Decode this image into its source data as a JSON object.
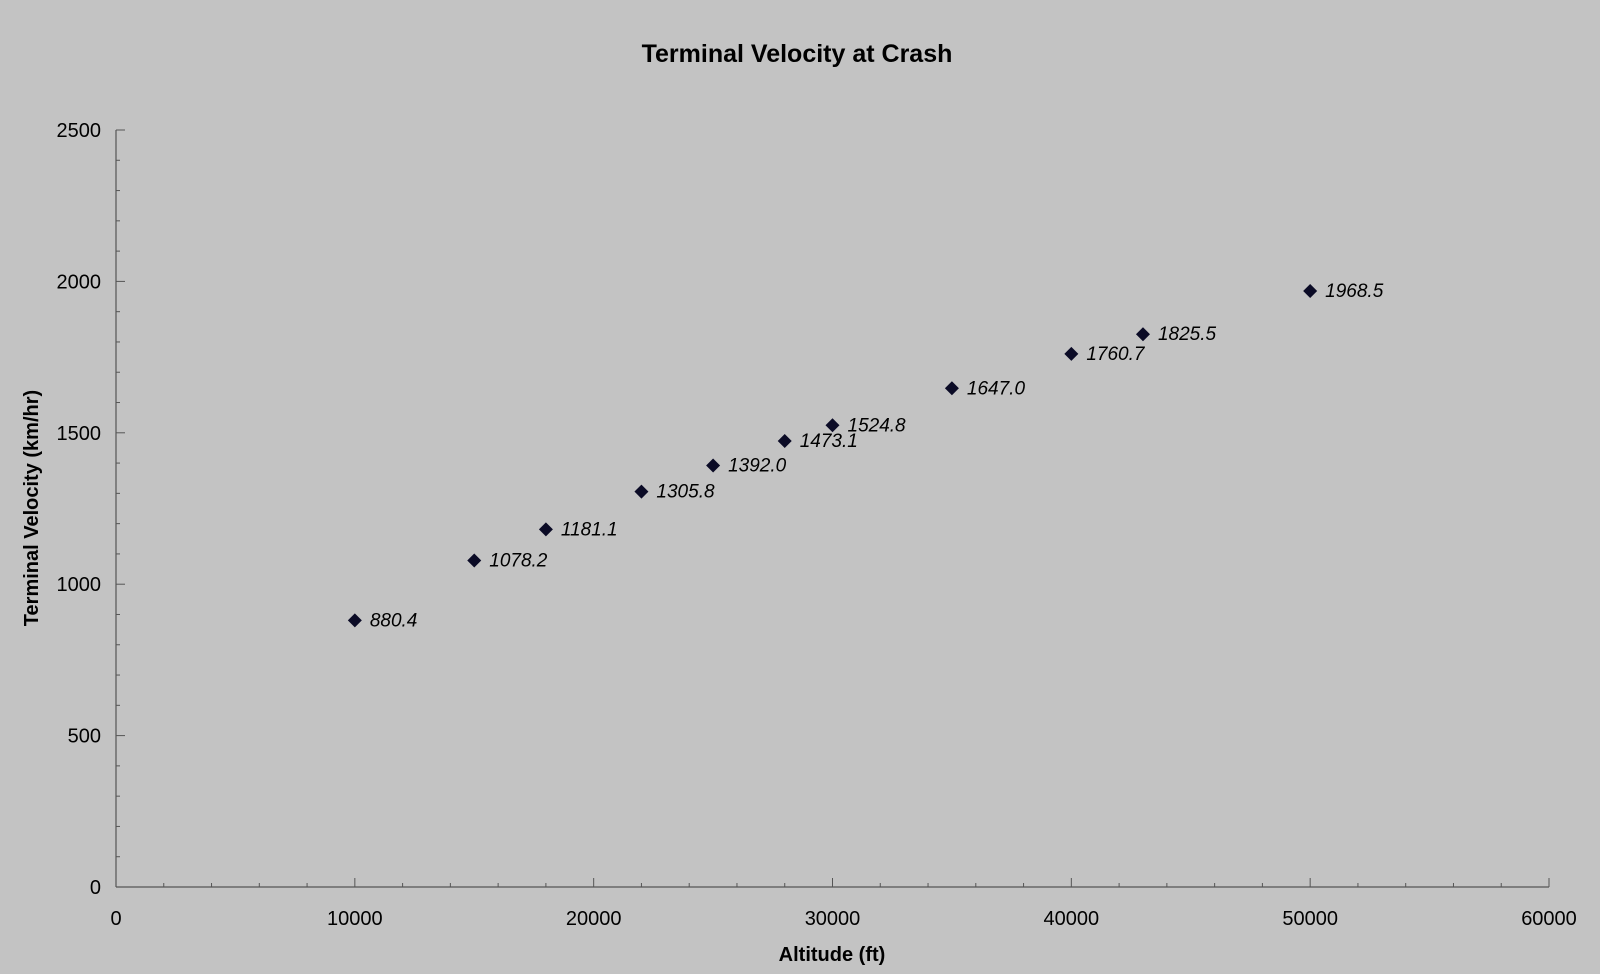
{
  "chart_data": {
    "type": "scatter",
    "title": "Terminal Velocity at Crash",
    "xlabel": "Altitude (ft)",
    "ylabel": "Terminal Velocity (km/hr)",
    "xlim": [
      0,
      60000
    ],
    "ylim": [
      0,
      2500
    ],
    "x_ticks": [
      0,
      10000,
      20000,
      30000,
      40000,
      50000,
      60000
    ],
    "y_ticks": [
      0,
      500,
      1000,
      1500,
      2000,
      2500
    ],
    "grid": false,
    "legend": "none",
    "marker": "diamond",
    "marker_color": "#0b0b26",
    "background_color": "#c3c3c3",
    "points": [
      {
        "x": 10000,
        "y": 880.4,
        "label": "880.4"
      },
      {
        "x": 15000,
        "y": 1078.2,
        "label": "1078.2"
      },
      {
        "x": 18000,
        "y": 1181.1,
        "label": "1181.1"
      },
      {
        "x": 22000,
        "y": 1305.8,
        "label": "1305.8"
      },
      {
        "x": 25000,
        "y": 1392.0,
        "label": "1392.0"
      },
      {
        "x": 28000,
        "y": 1473.1,
        "label": "1473.1"
      },
      {
        "x": 30000,
        "y": 1524.8,
        "label": "1524.8"
      },
      {
        "x": 35000,
        "y": 1647.0,
        "label": "1647.0"
      },
      {
        "x": 40000,
        "y": 1760.7,
        "label": "1760.7"
      },
      {
        "x": 43000,
        "y": 1825.5,
        "label": "1825.5"
      },
      {
        "x": 50000,
        "y": 1968.5,
        "label": "1968.5"
      }
    ]
  }
}
